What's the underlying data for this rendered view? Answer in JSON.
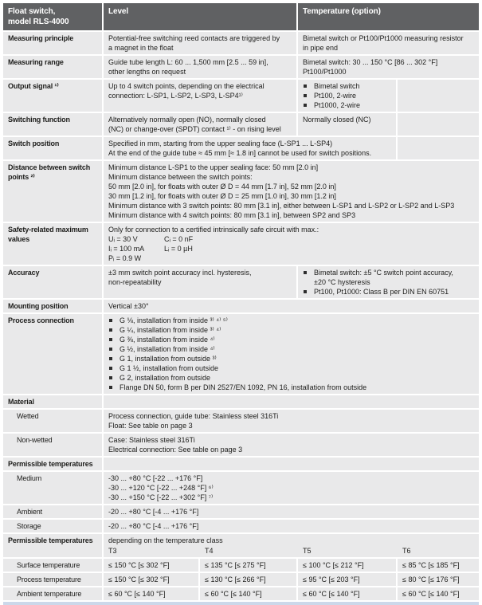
{
  "colors": {
    "header_bg": "#606163",
    "cell_bg": "#e9e9ea",
    "accent_bar": "#ccd8ea"
  },
  "table": {
    "header": {
      "model_line1": "Float switch,",
      "model_line2": "model RLS-4000",
      "level": "Level",
      "temperature": "Temperature (option)"
    },
    "rows": {
      "measuring_principle": {
        "label": "Measuring principle",
        "level": [
          "Potential-free switching reed contacts are triggered by",
          "a magnet in the float"
        ],
        "temp": [
          "Bimetal switch or Pt100/Pt1000 measuring resistor",
          "in pipe end"
        ]
      },
      "measuring_range": {
        "label": "Measuring range",
        "level": [
          "Guide tube length L: 60 ... 1,500 mm [2.5 ... 59 in],",
          "other lengths on request"
        ],
        "temp": [
          "Bimetal switch: 30 ... 150 °C [86 ... 302 °F]",
          "Pt100/Pt1000"
        ]
      },
      "output_signal": {
        "label": "Output signal ¹⁾",
        "level": [
          "Up to 4 switch points, depending on the electrical",
          "connection: L-SP1, L-SP2, L-SP3, L-SP4¹⁾"
        ],
        "temp_bullets": [
          "Bimetal switch",
          "Pt100, 2-wire",
          "Pt1000, 2-wire"
        ]
      },
      "switching_function": {
        "label": "Switching function",
        "level": [
          "Alternatively normally open (NO), normally closed",
          "(NC) or change-over (SPDT) contact ¹⁾ - on rising level"
        ],
        "temp": "Normally closed (NC)"
      },
      "switch_position": {
        "label": "Switch position",
        "lines": [
          "Specified in mm, starting from the upper sealing face (L-SP1 ... L-SP4)",
          "At the end of the guide tube ≈ 45 mm [≈ 1.8 in] cannot be used for switch positions."
        ]
      },
      "distance": {
        "label_line1": "Distance between switch",
        "label_line2": "points ²⁾",
        "lines": [
          "Minimum distance L-SP1 to the upper sealing face: 50 mm [2.0 in]",
          "Minimum distance between the switch points:",
          "50 mm [2.0 in], for floats with outer Ø D = 44 mm [1.7 in], 52 mm [2.0 in]",
          "30 mm [1.2 in], for floats with outer Ø D = 25 mm [1.0 in], 30 mm [1.2 in]",
          "Minimum distance with 3 switch points: 80 mm [3.1 in], either between L-SP1 and L-SP2 or L-SP2 and L-SP3",
          "Minimum distance with 4 switch points: 80 mm [3.1 in], between SP2 and SP3"
        ]
      },
      "safety": {
        "label_line1": "Safety-related maximum",
        "label_line2": "values",
        "intro": "Only for connection to a certified intrinsically safe circuit with max.:",
        "u": "Uᵢ = 30 V",
        "c": "Cᵢ = 0 nF",
        "i": "Iᵢ = 100 mA",
        "l": "Lᵢ = 0 µH",
        "p": "Pᵢ = 0.9 W"
      },
      "accuracy": {
        "label": "Accuracy",
        "level": [
          "±3 mm switch point accuracy incl. hysteresis,",
          "non-repeatability"
        ],
        "bullet1_line1": "Bimetal switch: ±5 °C switch point accuracy,",
        "bullet1_line2": "±20 °C hysteresis",
        "bullet2": "Pt100, Pt1000: Class B per DIN EN 60751"
      },
      "mounting": {
        "label": "Mounting position",
        "value": "Vertical ±30°"
      },
      "process_connection": {
        "label": "Process connection",
        "bullets": [
          "G ⅛, installation from inside ³⁾ ⁴⁾ ⁵⁾",
          "G ¼, installation from inside ³⁾ ⁴⁾",
          "G ⅜, installation from inside ⁴⁾",
          "G ½, installation from inside ⁴⁾",
          "G 1, installation from outside ³⁾",
          "G 1 ½, installation from outside",
          "G 2, installation from outside",
          "Flange DN 50, form B per DIN 2527/EN 1092, PN 16, installation from outside"
        ]
      },
      "material": {
        "label": "Material"
      },
      "wetted": {
        "label": "Wetted",
        "lines": [
          "Process connection, guide tube: Stainless steel 316Ti",
          "Float: See table on page 3"
        ]
      },
      "non_wetted": {
        "label": "Non-wetted",
        "lines": [
          "Case: Stainless steel 316Ti",
          "Electrical connection: See table on page 3"
        ]
      },
      "permissible_temperatures": {
        "label": "Permissible temperatures"
      },
      "medium": {
        "label": "Medium",
        "lines": [
          "-30 ... +80 °C [-22 ... +176 °F]",
          "-30 ... +120 °C [-22 ... +248 °F] ⁶⁾",
          "-30 ... +150 °C [-22 ... +302 °F] ⁷⁾"
        ]
      },
      "ambient": {
        "label": "Ambient",
        "lines": [
          "-20 ... +80 °C [-4 ... +176 °F]"
        ]
      },
      "storage": {
        "label": "Storage",
        "lines": [
          "-20 ... +80 °C [-4 ... +176 °F]"
        ]
      },
      "temp_class": {
        "label": "Permissible temperatures",
        "note": "depending on the temperature class",
        "classes": [
          "T3",
          "T4",
          "T5",
          "T6"
        ]
      },
      "surface_temp": {
        "label": "Surface temperature",
        "values": [
          "≤ 150 °C [≤ 302 °F]",
          "≤ 135 °C [≤ 275 °F]",
          "≤ 100 °C [≤ 212 °F]",
          "≤ 85 °C [≤ 185 °F]"
        ]
      },
      "process_temp": {
        "label": "Process temperature",
        "values": [
          "≤ 150 °C [≤ 302 °F]",
          "≤ 130 °C [≤ 266 °F]",
          "≤ 95 °C [≤ 203 °F]",
          "≤ 80 °C [≤ 176 °F]"
        ]
      },
      "ambient_temp": {
        "label": "Ambient temperature",
        "values": [
          "≤ 60 °C [≤ 140 °F]",
          "≤ 60 °C [≤ 140 °F]",
          "≤ 60 °C [≤ 140 °F]",
          "≤ 60 °C [≤ 140 °F]"
        ]
      }
    }
  }
}
